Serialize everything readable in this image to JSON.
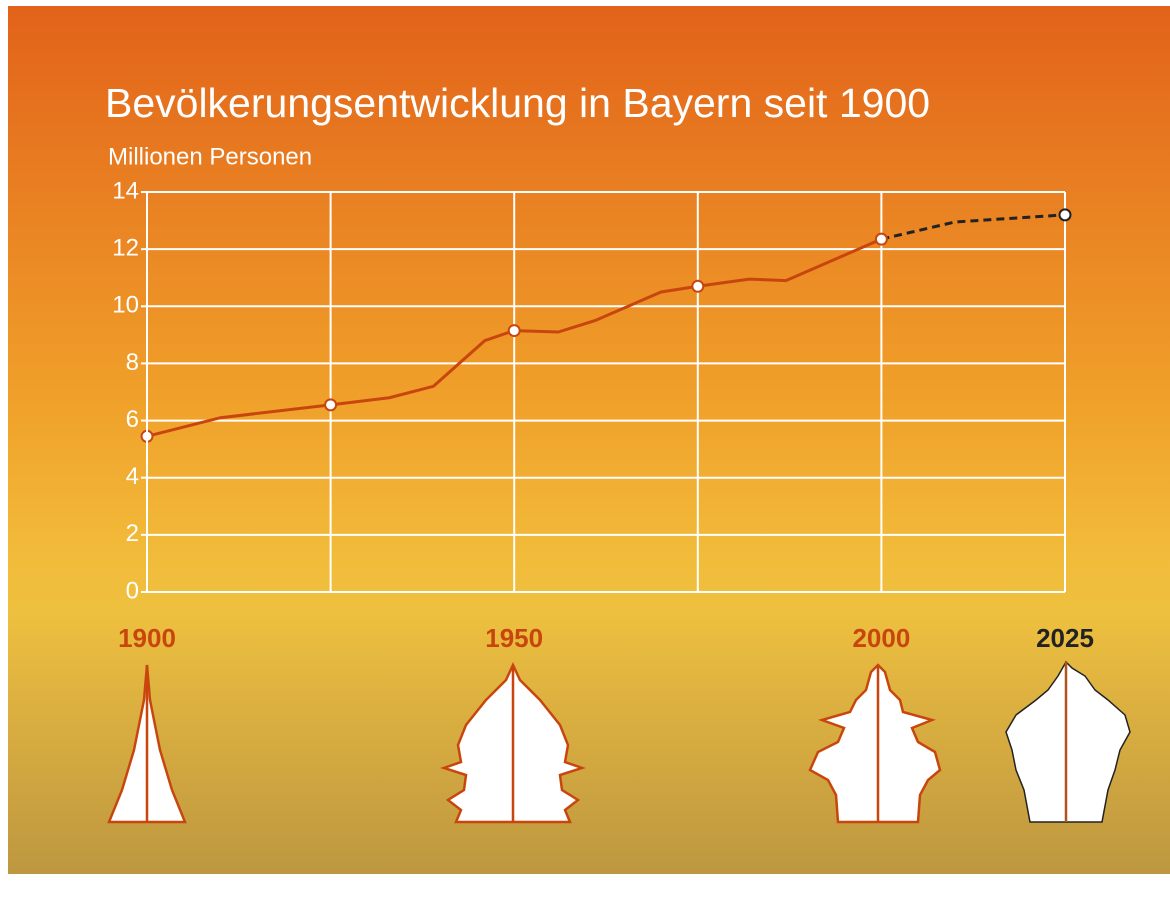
{
  "chart_data": {
    "type": "line",
    "title": "Bevölkerungsentwicklung in Bayern seit 1900",
    "subtitle": "Millionen Personen",
    "xlim": [
      1900,
      2025
    ],
    "xgrid": [
      1900,
      1925,
      1950,
      1975,
      2000,
      2025
    ],
    "xticks": [
      1900,
      1950,
      2000,
      2025
    ],
    "ylim": [
      0,
      14
    ],
    "yticks": [
      0,
      2,
      4,
      6,
      8,
      10,
      12,
      14
    ],
    "grid": true,
    "series": [
      {
        "color": "#c8460e",
        "style": "solid",
        "x": [
          1900,
          1910,
          1925,
          1933,
          1939,
          1946,
          1950,
          1956,
          1961,
          1970,
          1975,
          1982,
          1987,
          2000
        ],
        "values": [
          5.45,
          6.1,
          6.55,
          6.8,
          7.2,
          8.8,
          9.15,
          9.1,
          9.5,
          10.5,
          10.7,
          10.95,
          10.9,
          12.35
        ]
      },
      {
        "color": "#222222",
        "style": "dashed",
        "x": [
          2000,
          2010,
          2025
        ],
        "values": [
          12.35,
          12.95,
          13.2
        ]
      }
    ]
  }
}
